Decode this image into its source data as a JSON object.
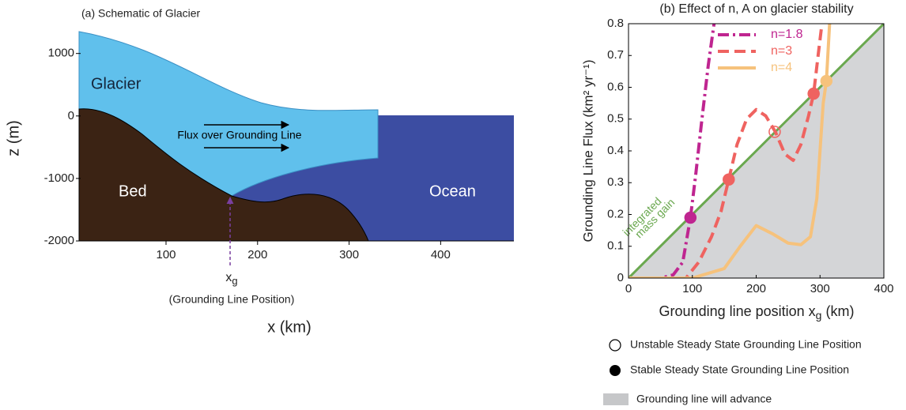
{
  "chart_data": [
    {
      "type": "diagram",
      "title": "(a) Schematic of Glacier",
      "xlabel": "x (km)",
      "ylabel": "z (m)",
      "xlim": [
        5,
        480
      ],
      "ylim": [
        -2000,
        1350
      ],
      "xticks": [
        100,
        200,
        300,
        400
      ],
      "yticks": [
        1000,
        0,
        -1000,
        -2000
      ],
      "labels": {
        "glacier": "Glacier",
        "bed": "Bed",
        "ocean": "Ocean",
        "flux": "Flux over Grounding Line"
      },
      "grounding_line_x": 170,
      "marker_label": {
        "text": "x",
        "subscript": "g",
        "caption": "(Grounding Line Position)"
      }
    },
    {
      "type": "line",
      "title": "(b) Effect of n, A on glacier stability",
      "ylabel": "Grounding Line Flux (km² yr⁻¹)",
      "xlabel": {
        "text": "Grounding line position x",
        "subscript": "g",
        "suffix": "(km)"
      },
      "xlim": [
        0,
        400
      ],
      "ylim": [
        0,
        0.8
      ],
      "xticks": [
        0,
        100,
        200,
        300,
        400
      ],
      "yticks": [
        0,
        0.1,
        0.2,
        0.3,
        0.4,
        0.5,
        0.6,
        0.7,
        0.8
      ],
      "reference_line": {
        "x": [
          0,
          400
        ],
        "values": [
          0,
          0.8
        ],
        "color": "#6aa84f",
        "fill": "#d4d5d7",
        "label": [
          "integrated",
          "mass gain"
        ]
      },
      "series": [
        {
          "name": "n=1.8",
          "color": "#bf2590",
          "style": "dashdot",
          "x": [
            0,
            50,
            70,
            85,
            97,
            105,
            115,
            125,
            134
          ],
          "values": [
            0,
            0,
            0.01,
            0.05,
            0.19,
            0.32,
            0.5,
            0.67,
            0.8
          ]
        },
        {
          "name": "n=3",
          "color": "#ef6360",
          "style": "dashed",
          "x": [
            0,
            90,
            110,
            130,
            145,
            157,
            170,
            185,
            200,
            215,
            230,
            245,
            258,
            270,
            282,
            290,
            297,
            303
          ],
          "values": [
            0,
            0,
            0.05,
            0.13,
            0.21,
            0.31,
            0.42,
            0.5,
            0.53,
            0.51,
            0.46,
            0.39,
            0.37,
            0.42,
            0.51,
            0.58,
            0.7,
            0.8
          ]
        },
        {
          "name": "n=4",
          "color": "#f6c27c",
          "style": "solid",
          "x": [
            0,
            100,
            150,
            175,
            200,
            225,
            250,
            270,
            285,
            295,
            300,
            305,
            310,
            315
          ],
          "values": [
            0,
            0,
            0.03,
            0.1,
            0.165,
            0.14,
            0.11,
            0.105,
            0.13,
            0.25,
            0.4,
            0.55,
            0.62,
            0.8
          ]
        }
      ],
      "points": [
        {
          "x": 97,
          "y": 0.19,
          "stable": true,
          "color": "#bf2590"
        },
        {
          "x": 157,
          "y": 0.31,
          "stable": true,
          "color": "#ef6360"
        },
        {
          "x": 229,
          "y": 0.46,
          "stable": false,
          "color": "#ef6360"
        },
        {
          "x": 290,
          "y": 0.58,
          "stable": true,
          "color": "#ef6360"
        },
        {
          "x": 310,
          "y": 0.62,
          "stable": true,
          "color": "#f6c27c"
        }
      ],
      "marker_legend": [
        "Unstable Steady State Grounding Line Position",
        "Stable Steady State Grounding Line Position",
        "Grounding line will advance"
      ]
    }
  ]
}
